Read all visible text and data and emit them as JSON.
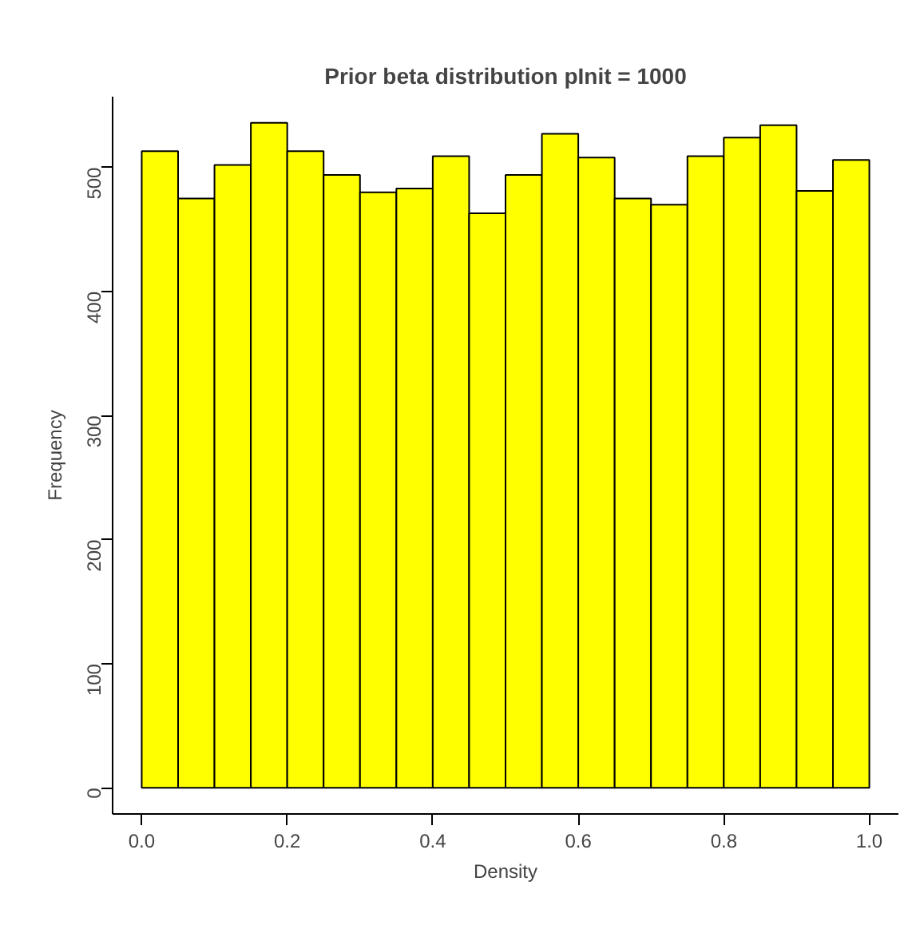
{
  "chart_data": {
    "type": "histogram",
    "title": "Prior beta distribution pInit = 1000",
    "xlabel": "Density",
    "ylabel": "Frequency",
    "bins": [
      0,
      0.05,
      0.1,
      0.15,
      0.2,
      0.25,
      0.3,
      0.35,
      0.4,
      0.45,
      0.5,
      0.55,
      0.6,
      0.65,
      0.7,
      0.75,
      0.8,
      0.85,
      0.9,
      0.95,
      1.0
    ],
    "values": [
      513,
      475,
      502,
      536,
      513,
      494,
      480,
      483,
      509,
      463,
      494,
      527,
      508,
      475,
      470,
      509,
      524,
      534,
      481,
      506
    ],
    "color": "#ffff00",
    "xlim": [
      -0.04,
      1.04
    ],
    "ylim": [
      -21,
      557
    ],
    "xticks": [
      {
        "value": 0,
        "label": "0.0"
      },
      0.2,
      0.4,
      0.6,
      0.8,
      {
        "value": 1,
        "label": "1.0"
      }
    ],
    "yticks": [
      0,
      100,
      200,
      300,
      400,
      500
    ],
    "grid": false
  }
}
